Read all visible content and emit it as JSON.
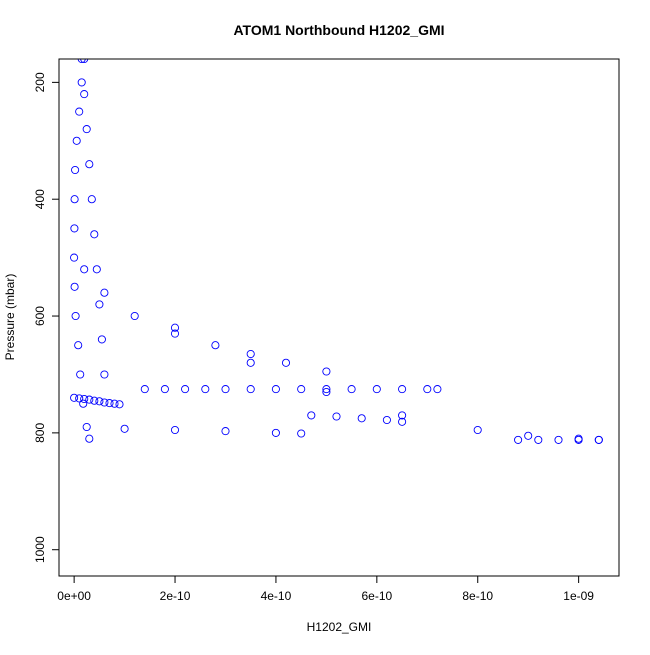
{
  "chart_data": {
    "type": "scatter",
    "title": "ATOM1 Northbound H1202_GMI",
    "xlabel": "H1202_GMI",
    "ylabel": "Pressure (mbar)",
    "xlim": [
      -3e-11,
      1.08e-09
    ],
    "ylim": [
      1045,
      160
    ],
    "y_reversed": true,
    "grid": false,
    "legend": "none",
    "marker": "open-circle",
    "color": "#0000ff",
    "x_ticks": [
      {
        "value": 0,
        "label": "0e+00"
      },
      {
        "value": 2e-10,
        "label": "2e-10"
      },
      {
        "value": 4e-10,
        "label": "4e-10"
      },
      {
        "value": 6e-10,
        "label": "6e-10"
      },
      {
        "value": 8e-10,
        "label": "8e-10"
      },
      {
        "value": 1e-09,
        "label": "1e-09"
      }
    ],
    "y_ticks": [
      {
        "value": 200,
        "label": "200"
      },
      {
        "value": 400,
        "label": "400"
      },
      {
        "value": 600,
        "label": "600"
      },
      {
        "value": 800,
        "label": "800"
      },
      {
        "value": 1000,
        "label": "1000"
      }
    ],
    "series": [
      {
        "x": [
          2e-11,
          1.5e-11,
          1e-11,
          5e-12,
          2e-12,
          1e-12,
          5e-13,
          0,
          1e-12,
          3e-12,
          8e-12,
          1.2e-11,
          1.8e-11,
          2.5e-11,
          3e-11
        ],
        "y": [
          160,
          200,
          250,
          300,
          350,
          400,
          450,
          500,
          550,
          600,
          650,
          700,
          750,
          790,
          810
        ]
      },
      {
        "x": [
          1.5e-11,
          2e-11,
          2.5e-11,
          3e-11,
          3.5e-11,
          4e-11,
          4.5e-11,
          5e-11,
          5.5e-11,
          6e-11
        ],
        "y": [
          160,
          220,
          280,
          340,
          400,
          460,
          520,
          580,
          640,
          700
        ]
      },
      {
        "x": [
          2e-11,
          6e-11,
          1.2e-10,
          2e-10,
          2.8e-10,
          3.5e-10,
          4.2e-10,
          5e-10
        ],
        "y": [
          520,
          560,
          600,
          630,
          650,
          665,
          680,
          695
        ]
      },
      {
        "x": [
          1.4e-10,
          1.8e-10,
          2.2e-10,
          2.6e-10,
          3e-10,
          3.5e-10,
          4e-10,
          4.5e-10,
          5e-10,
          5.5e-10,
          6e-10,
          6.5e-10,
          7e-10,
          7.2e-10
        ],
        "y": [
          725,
          725,
          725,
          725,
          725,
          725,
          725,
          725,
          725,
          725,
          725,
          725,
          725,
          725
        ]
      },
      {
        "x": [
          1e-10,
          2e-10,
          3e-10,
          4e-10,
          4.5e-10
        ],
        "y": [
          793,
          795,
          797,
          800,
          801
        ]
      },
      {
        "x": [
          2e-10,
          3.5e-10,
          5e-10,
          6.5e-10,
          8e-10,
          9e-10,
          1e-09,
          1.04e-09
        ],
        "y": [
          620,
          680,
          730,
          770,
          795,
          805,
          810,
          812
        ]
      },
      {
        "x": [
          8.8e-10,
          9.2e-10,
          9.6e-10,
          1e-09,
          1.04e-09
        ],
        "y": [
          812,
          812,
          812,
          812,
          812
        ]
      },
      {
        "x": [
          4.7e-10,
          5.2e-10,
          5.7e-10,
          6.2e-10,
          6.5e-10
        ],
        "y": [
          770,
          772,
          775,
          778,
          781
        ]
      },
      {
        "x": [
          0,
          1e-11,
          2e-11,
          3e-11,
          4e-11,
          5e-11,
          6e-11,
          7e-11,
          8e-11,
          9e-11
        ],
        "y": [
          740,
          741,
          742,
          743,
          745,
          746,
          748,
          749,
          750,
          751
        ]
      }
    ]
  }
}
